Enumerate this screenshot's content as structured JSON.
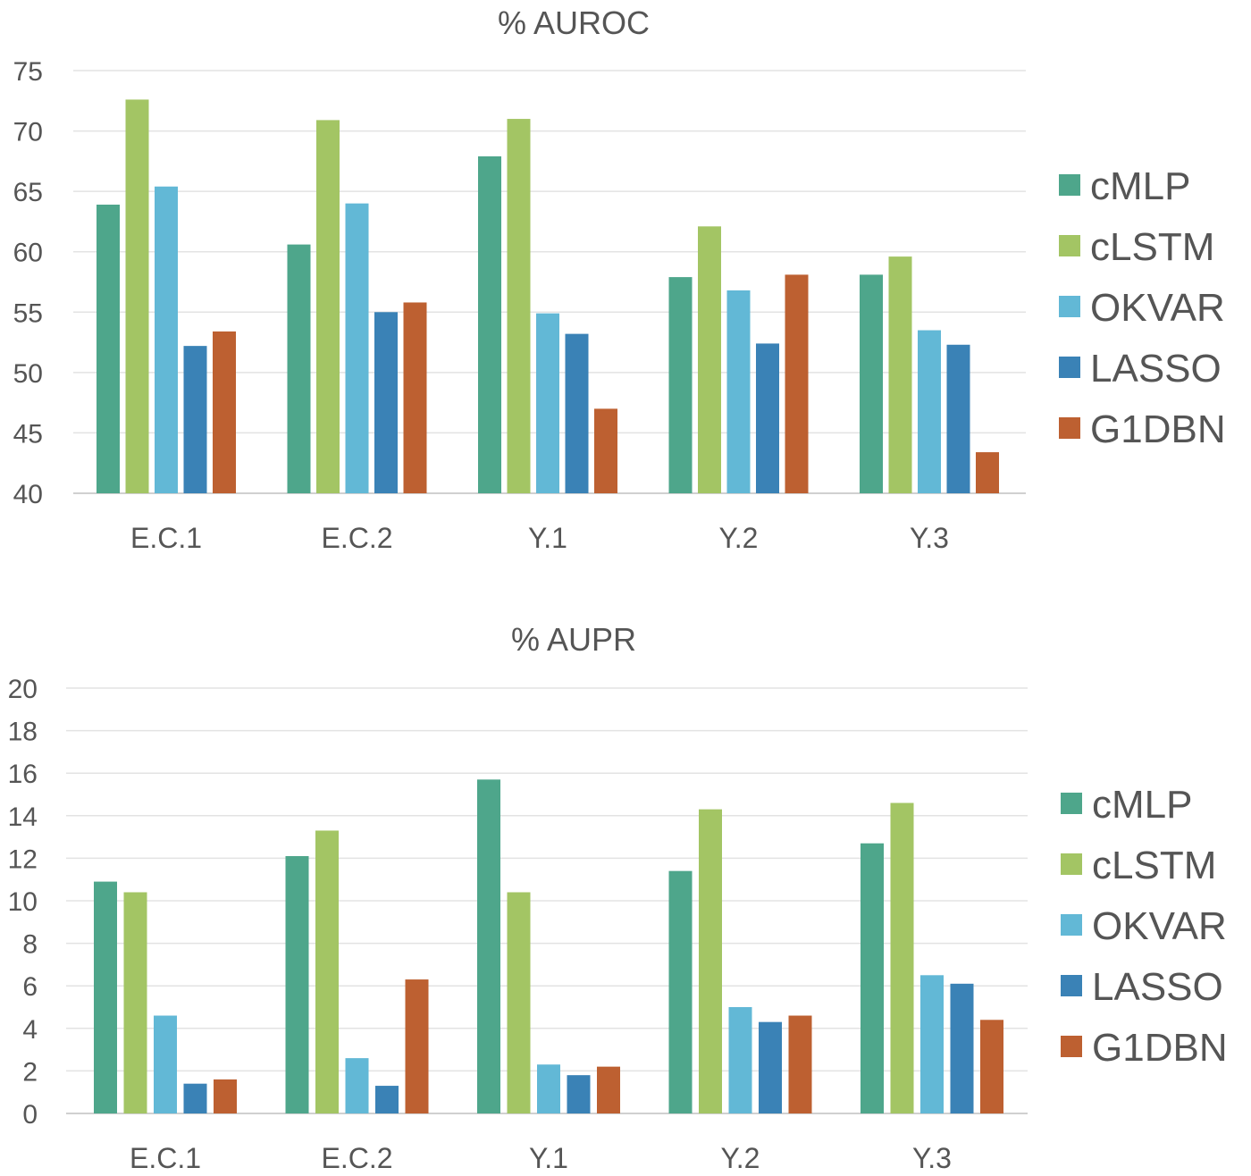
{
  "colors": {
    "cMLP": "#4ea68b",
    "cLSTM": "#a3c564",
    "OKVAR": "#62b8d6",
    "LASSO": "#3a82b6",
    "G1DBN": "#bd6031"
  },
  "chart_data": [
    {
      "type": "bar",
      "title": "% AUROC",
      "xlabel": "",
      "ylabel": "",
      "ylim": [
        40,
        75
      ],
      "yticks": [
        40,
        45,
        50,
        55,
        60,
        65,
        70,
        75
      ],
      "grid": true,
      "legend_position": "right",
      "categories": [
        "E.C.1",
        "E.C.2",
        "Y.1",
        "Y.2",
        "Y.3"
      ],
      "series": [
        {
          "name": "cMLP",
          "values": [
            63.9,
            60.6,
            67.9,
            57.9,
            58.1
          ]
        },
        {
          "name": "cLSTM",
          "values": [
            72.6,
            70.9,
            71.0,
            62.1,
            59.6
          ]
        },
        {
          "name": "OKVAR",
          "values": [
            65.4,
            64.0,
            54.9,
            56.8,
            53.5
          ]
        },
        {
          "name": "LASSO",
          "values": [
            52.2,
            55.0,
            53.2,
            52.4,
            52.3
          ]
        },
        {
          "name": "G1DBN",
          "values": [
            53.4,
            55.8,
            47.0,
            58.1,
            43.4
          ]
        }
      ]
    },
    {
      "type": "bar",
      "title": "% AUPR",
      "xlabel": "",
      "ylabel": "",
      "ylim": [
        0,
        20
      ],
      "yticks": [
        0,
        2,
        4,
        6,
        8,
        10,
        12,
        14,
        16,
        18,
        20
      ],
      "grid": true,
      "legend_position": "right",
      "categories": [
        "E.C.1",
        "E.C.2",
        "Y.1",
        "Y.2",
        "Y.3"
      ],
      "series": [
        {
          "name": "cMLP",
          "values": [
            10.9,
            12.1,
            15.7,
            11.4,
            12.7
          ]
        },
        {
          "name": "cLSTM",
          "values": [
            10.4,
            13.3,
            10.4,
            14.3,
            14.6
          ]
        },
        {
          "name": "OKVAR",
          "values": [
            4.6,
            2.6,
            2.3,
            5.0,
            6.5
          ]
        },
        {
          "name": "LASSO",
          "values": [
            1.4,
            1.3,
            1.8,
            4.3,
            6.1
          ]
        },
        {
          "name": "G1DBN",
          "values": [
            1.6,
            6.3,
            2.2,
            4.6,
            4.4
          ]
        }
      ]
    }
  ]
}
